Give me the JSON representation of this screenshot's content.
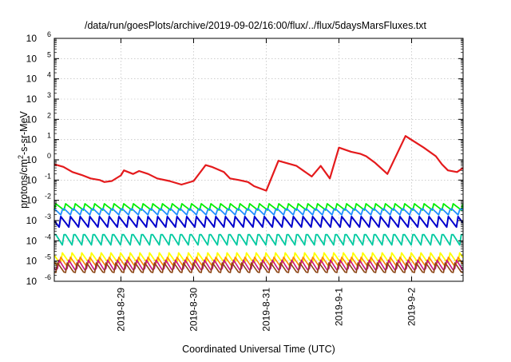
{
  "chart_data": {
    "type": "line",
    "title": "/data/run/goesPlots/archive/2019-09-02/16:00/flux/../flux/5daysMarsFluxes.txt",
    "xlabel": "Coordinated Universal Time (UTC)",
    "ylabel_parts": {
      "prefix": "protons/cm",
      "sup": "2",
      "suffix": "-s-sr-MeV"
    },
    "x_scale": "date",
    "xlim": [
      "2019-08-28 02:00",
      "2019-09-02 17:00"
    ],
    "x_tick_labels": [
      "2019-8-29",
      "2019-8-30",
      "2019-8-31",
      "2019-9-1",
      "2019-9-2"
    ],
    "x_ticks": [
      "2019-08-29 00:00",
      "2019-08-30 00:00",
      "2019-08-31 00:00",
      "2019-09-01 00:00",
      "2019-09-02 00:00"
    ],
    "y_scale": "log",
    "ylim": [
      1e-06,
      1000000.0
    ],
    "y_ticks": [
      {
        "base": "10",
        "exp": "-6",
        "value": 1e-06
      },
      {
        "base": "10",
        "exp": "-5",
        "value": 1e-05
      },
      {
        "base": "10",
        "exp": "-4",
        "value": 0.0001
      },
      {
        "base": "10",
        "exp": "-3",
        "value": 0.001
      },
      {
        "base": "10",
        "exp": "-2",
        "value": 0.01
      },
      {
        "base": "10",
        "exp": "-1",
        "value": 0.1
      },
      {
        "base": "10",
        "exp": "0",
        "value": 1.0
      },
      {
        "base": "10",
        "exp": "1",
        "value": 10.0
      },
      {
        "base": "10",
        "exp": "2",
        "value": 100.0
      },
      {
        "base": "10",
        "exp": "3",
        "value": 1000.0
      },
      {
        "base": "10",
        "exp": "4",
        "value": 10000.0
      },
      {
        "base": "10",
        "exp": "5",
        "value": 100000.0
      },
      {
        "base": "10",
        "exp": "6",
        "value": 1000000.0
      }
    ],
    "grid": true,
    "legend": "none",
    "series": [
      {
        "color": "#e41a1c",
        "x": [
          "2019-08-28 02:00",
          "2019-08-28 05:00",
          "2019-08-28 08:00",
          "2019-08-28 11:00",
          "2019-08-28 14:00",
          "2019-08-28 17:00",
          "2019-08-28 18:30",
          "2019-08-28 21:00",
          "2019-08-29 00:00",
          "2019-08-29 01:00",
          "2019-08-29 04:00",
          "2019-08-29 06:00",
          "2019-08-29 09:00",
          "2019-08-29 12:00",
          "2019-08-29 16:00",
          "2019-08-29 20:00",
          "2019-08-30 00:00",
          "2019-08-30 04:00",
          "2019-08-30 06:00",
          "2019-08-30 10:00",
          "2019-08-30 12:00",
          "2019-08-30 15:00",
          "2019-08-30 18:00",
          "2019-08-30 20:00",
          "2019-08-31 00:00",
          "2019-08-31 04:00",
          "2019-08-31 10:00",
          "2019-08-31 15:00",
          "2019-08-31 18:00",
          "2019-08-31 21:00",
          "2019-09-01 00:00",
          "2019-09-01 04:00",
          "2019-09-01 07:00",
          "2019-09-01 09:00",
          "2019-09-01 12:00",
          "2019-09-01 16:00",
          "2019-09-01 22:00",
          "2019-09-02 04:00",
          "2019-09-02 08:00",
          "2019-09-02 10:00",
          "2019-09-02 12:00",
          "2019-09-02 15:00",
          "2019-09-02 17:00"
        ],
        "y": [
          0.6,
          0.45,
          0.25,
          0.18,
          0.12,
          0.1,
          0.08,
          0.09,
          0.17,
          0.3,
          0.2,
          0.28,
          0.2,
          0.12,
          0.09,
          0.06,
          0.09,
          0.55,
          0.45,
          0.25,
          0.12,
          0.1,
          0.08,
          0.05,
          0.03,
          0.9,
          0.5,
          0.15,
          0.5,
          0.12,
          4.0,
          2.5,
          2.0,
          1.5,
          0.7,
          0.2,
          15.0,
          4.0,
          1.5,
          0.6,
          0.3,
          0.25,
          0.4
        ]
      }
    ]
  }
}
